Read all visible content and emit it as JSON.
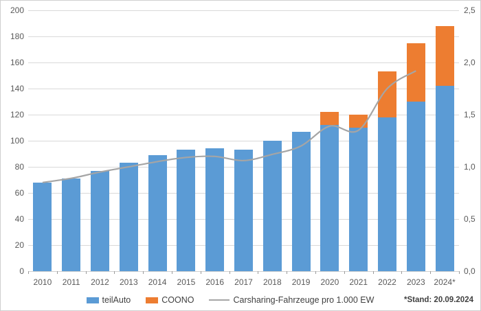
{
  "chart_data": {
    "type": "bar",
    "stacked": true,
    "title": "",
    "xlabel": "",
    "ylabel": "",
    "categories": [
      "2010",
      "2011",
      "2012",
      "2013",
      "2014",
      "2015",
      "2016",
      "2017",
      "2018",
      "2019",
      "2020",
      "2021",
      "2022",
      "2023",
      "2024*"
    ],
    "series": [
      {
        "name": "teilAuto",
        "kind": "bar",
        "axis": "left",
        "color": "#5B9BD5",
        "values": [
          68,
          71,
          77,
          83,
          89,
          93,
          94,
          93,
          100,
          107,
          112,
          110,
          118,
          130,
          142
        ]
      },
      {
        "name": "COONO",
        "kind": "bar",
        "axis": "left",
        "color": "#ED7D31",
        "values": [
          0,
          0,
          0,
          0,
          0,
          0,
          0,
          0,
          0,
          0,
          10,
          10,
          35,
          45,
          46
        ]
      },
      {
        "name": "Carsharing-Fahrzeuge pro 1.000 EW",
        "kind": "line",
        "axis": "right",
        "color": "#A5A5A5",
        "values": [
          0.85,
          0.89,
          0.95,
          1.0,
          1.05,
          1.09,
          1.1,
          1.06,
          1.12,
          1.2,
          1.39,
          1.35,
          1.75,
          1.92,
          null
        ]
      }
    ],
    "left_axis": {
      "min": 0,
      "max": 200,
      "step": 20,
      "labels": [
        "200",
        "180",
        "160",
        "140",
        "120",
        "100",
        "80",
        "60",
        "40",
        "20",
        "0"
      ]
    },
    "right_axis": {
      "min": 0,
      "max": 2.5,
      "step": 0.5,
      "labels": [
        "2,5",
        "2,0",
        "1,5",
        "1,0",
        "0,5",
        "0,0"
      ]
    },
    "grid": true,
    "legend_position": "bottom",
    "footnote": "*Stand: 20.09.2024",
    "colors": {
      "grid": "#D9D9D9",
      "axis_line": "#D0D0D0",
      "axis_text": "#595959",
      "footnote_text": "#404040"
    }
  }
}
